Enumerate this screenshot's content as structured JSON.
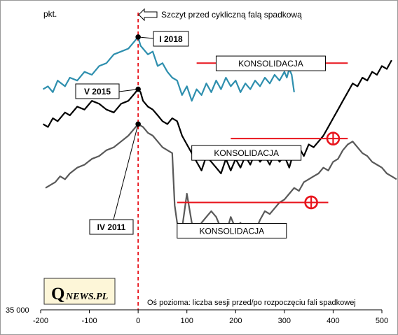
{
  "chart_data": {
    "type": "line",
    "ylabel": "pkt.",
    "y_min_label": "35 000",
    "x_axis_caption": "Oś pozioma: liczba sesji przed/po rozpoczęciu fali spadkowej",
    "xlim": [
      -200,
      500
    ],
    "x_ticks": [
      "-200",
      "-100",
      "0",
      "100",
      "200",
      "300",
      "400",
      "500"
    ],
    "peak_annotation": "Szczyt przed cykliczną falą spadkową",
    "consolidation_label": "KONSOLIDACJA",
    "series": [
      {
        "name": "I 2018",
        "color": "#2e8fae",
        "points": [
          [
            -195,
            380
          ],
          [
            -185,
            385
          ],
          [
            -175,
            375
          ],
          [
            -165,
            395
          ],
          [
            -150,
            385
          ],
          [
            -140,
            400
          ],
          [
            -125,
            395
          ],
          [
            -110,
            410
          ],
          [
            -95,
            405
          ],
          [
            -80,
            420
          ],
          [
            -65,
            425
          ],
          [
            -50,
            440
          ],
          [
            -35,
            445
          ],
          [
            -20,
            450
          ],
          [
            -10,
            460
          ],
          [
            0,
            470
          ],
          [
            5,
            455
          ],
          [
            10,
            450
          ],
          [
            20,
            440
          ],
          [
            30,
            445
          ],
          [
            40,
            420
          ],
          [
            50,
            425
          ],
          [
            60,
            410
          ],
          [
            70,
            400
          ],
          [
            80,
            395
          ],
          [
            90,
            370
          ],
          [
            100,
            385
          ],
          [
            110,
            360
          ],
          [
            120,
            380
          ],
          [
            130,
            370
          ],
          [
            140,
            390
          ],
          [
            150,
            375
          ],
          [
            160,
            395
          ],
          [
            170,
            380
          ],
          [
            180,
            400
          ],
          [
            190,
            385
          ],
          [
            200,
            395
          ],
          [
            210,
            375
          ],
          [
            220,
            390
          ],
          [
            230,
            380
          ],
          [
            240,
            395
          ],
          [
            250,
            385
          ],
          [
            260,
            400
          ],
          [
            270,
            390
          ],
          [
            280,
            405
          ],
          [
            290,
            395
          ],
          [
            300,
            410
          ],
          [
            305,
            400
          ],
          [
            310,
            415
          ],
          [
            315,
            405
          ],
          [
            320,
            375
          ]
        ]
      },
      {
        "name": "V 2015",
        "color": "#000000",
        "points": [
          [
            -195,
            320
          ],
          [
            -185,
            315
          ],
          [
            -175,
            330
          ],
          [
            -165,
            325
          ],
          [
            -150,
            340
          ],
          [
            -140,
            335
          ],
          [
            -125,
            350
          ],
          [
            -110,
            345
          ],
          [
            -95,
            360
          ],
          [
            -80,
            355
          ],
          [
            -65,
            345
          ],
          [
            -50,
            340
          ],
          [
            -35,
            355
          ],
          [
            -20,
            360
          ],
          [
            -10,
            370
          ],
          [
            0,
            380
          ],
          [
            5,
            375
          ],
          [
            10,
            360
          ],
          [
            20,
            350
          ],
          [
            30,
            345
          ],
          [
            40,
            335
          ],
          [
            50,
            325
          ],
          [
            60,
            320
          ],
          [
            70,
            330
          ],
          [
            80,
            325
          ],
          [
            90,
            300
          ],
          [
            100,
            285
          ],
          [
            110,
            270
          ],
          [
            120,
            255
          ],
          [
            130,
            240
          ],
          [
            140,
            265
          ],
          [
            150,
            255
          ],
          [
            160,
            245
          ],
          [
            170,
            235
          ],
          [
            180,
            260
          ],
          [
            190,
            240
          ],
          [
            200,
            260
          ],
          [
            210,
            245
          ],
          [
            220,
            265
          ],
          [
            230,
            250
          ],
          [
            240,
            270
          ],
          [
            250,
            255
          ],
          [
            260,
            265
          ],
          [
            270,
            250
          ],
          [
            280,
            270
          ],
          [
            290,
            255
          ],
          [
            300,
            265
          ],
          [
            310,
            245
          ],
          [
            320,
            275
          ],
          [
            330,
            280
          ],
          [
            340,
            265
          ],
          [
            350,
            285
          ],
          [
            360,
            280
          ],
          [
            370,
            290
          ],
          [
            380,
            300
          ],
          [
            390,
            315
          ],
          [
            400,
            330
          ],
          [
            410,
            345
          ],
          [
            420,
            360
          ],
          [
            430,
            375
          ],
          [
            440,
            390
          ],
          [
            450,
            385
          ],
          [
            460,
            400
          ],
          [
            470,
            395
          ],
          [
            480,
            410
          ],
          [
            490,
            405
          ],
          [
            500,
            420
          ],
          [
            510,
            415
          ],
          [
            520,
            430
          ]
        ]
      },
      {
        "name": "IV 2011",
        "color": "#595959",
        "points": [
          [
            -190,
            210
          ],
          [
            -180,
            215
          ],
          [
            -170,
            220
          ],
          [
            -160,
            230
          ],
          [
            -150,
            225
          ],
          [
            -140,
            235
          ],
          [
            -125,
            245
          ],
          [
            -110,
            250
          ],
          [
            -95,
            260
          ],
          [
            -80,
            265
          ],
          [
            -65,
            275
          ],
          [
            -50,
            280
          ],
          [
            -35,
            290
          ],
          [
            -20,
            300
          ],
          [
            -10,
            310
          ],
          [
            0,
            320
          ],
          [
            10,
            315
          ],
          [
            20,
            305
          ],
          [
            30,
            300
          ],
          [
            40,
            290
          ],
          [
            50,
            280
          ],
          [
            60,
            275
          ],
          [
            70,
            270
          ],
          [
            75,
            180
          ],
          [
            80,
            150
          ],
          [
            90,
            140
          ],
          [
            100,
            200
          ],
          [
            110,
            150
          ],
          [
            120,
            130
          ],
          [
            130,
            150
          ],
          [
            140,
            160
          ],
          [
            150,
            170
          ],
          [
            160,
            160
          ],
          [
            170,
            140
          ],
          [
            180,
            130
          ],
          [
            190,
            160
          ],
          [
            200,
            140
          ],
          [
            210,
            150
          ],
          [
            220,
            130
          ],
          [
            230,
            145
          ],
          [
            240,
            135
          ],
          [
            250,
            155
          ],
          [
            260,
            170
          ],
          [
            270,
            165
          ],
          [
            280,
            175
          ],
          [
            290,
            185
          ],
          [
            300,
            190
          ],
          [
            310,
            200
          ],
          [
            320,
            210
          ],
          [
            330,
            205
          ],
          [
            340,
            220
          ],
          [
            350,
            225
          ],
          [
            360,
            230
          ],
          [
            370,
            235
          ],
          [
            380,
            245
          ],
          [
            390,
            240
          ],
          [
            400,
            255
          ],
          [
            410,
            260
          ],
          [
            420,
            275
          ],
          [
            430,
            285
          ],
          [
            440,
            290
          ],
          [
            450,
            280
          ],
          [
            460,
            270
          ],
          [
            470,
            265
          ],
          [
            480,
            255
          ],
          [
            490,
            250
          ],
          [
            500,
            245
          ],
          [
            510,
            235
          ],
          [
            520,
            230
          ],
          [
            530,
            225
          ]
        ]
      }
    ],
    "consolidations": [
      {
        "series": "I 2018",
        "x_start": 120,
        "x_end": 430,
        "y": 425
      },
      {
        "series": "V 2015",
        "x_start": 190,
        "x_end": 430,
        "y": 295
      },
      {
        "series": "IV 2011",
        "x_start": 80,
        "x_end": 390,
        "y": 185
      }
    ],
    "breakout_markers": [
      {
        "series": "V 2015",
        "x": 400,
        "y": 295
      },
      {
        "series": "IV 2011",
        "x": 355,
        "y": 185
      }
    ],
    "peak_points": [
      {
        "series": "I 2018",
        "label": "I 2018",
        "x": 0,
        "y": 470
      },
      {
        "series": "V 2015",
        "label": "V 2015",
        "x": 0,
        "y": 380
      },
      {
        "series": "IV 2011",
        "label": "IV 2011",
        "x": 0,
        "y": 320
      }
    ],
    "grid": false
  },
  "logo": {
    "q": "Q",
    "rest": "NEWS.PL"
  },
  "colors": {
    "red": "#e8141c",
    "dashed": "#e8141c",
    "label_red": "#e8141c"
  }
}
